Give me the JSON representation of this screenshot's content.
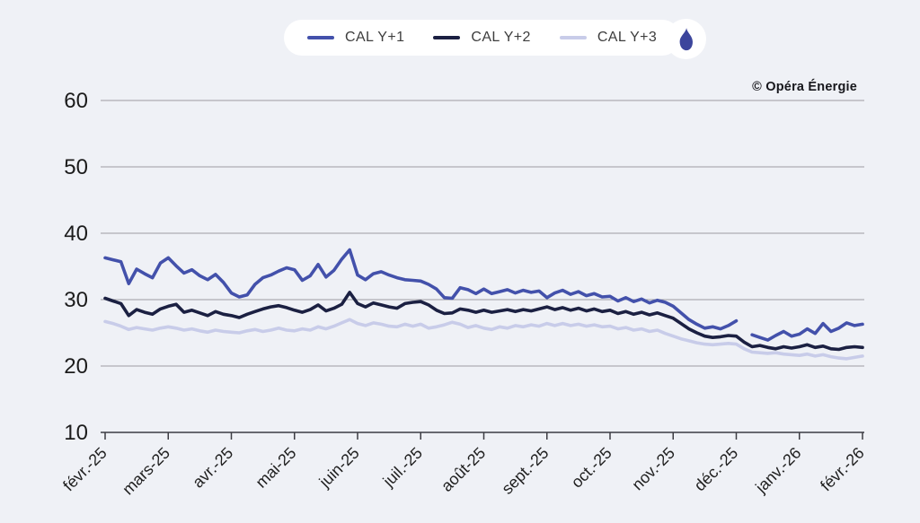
{
  "legend": {
    "items": [
      {
        "label": "CAL Y+1",
        "color": "#4351ab"
      },
      {
        "label": "CAL Y+2",
        "color": "#1b2042"
      },
      {
        "label": "CAL Y+3",
        "color": "#c8cce9"
      }
    ],
    "flame_color": "#3c459c"
  },
  "attribution": "© Opéra Énergie",
  "chart_data": {
    "type": "line",
    "title": "",
    "xlabel": "",
    "ylabel": "",
    "grid": true,
    "legend_position": "top-center",
    "ylim": [
      10,
      62
    ],
    "y_ticks": [
      10,
      20,
      30,
      40,
      50,
      60
    ],
    "x_tick_labels": [
      "févr.-25",
      "mars-25",
      "avr.-25",
      "mai-25",
      "juin-25",
      "juil.-25",
      "août-25",
      "sept.-25",
      "oct.-25",
      "nov.-25",
      "déc.-25",
      "janv.-26",
      "févr.-26"
    ],
    "points_per_month": 8,
    "series": [
      {
        "name": "CAL Y+1",
        "color": "#4351ab",
        "values": [
          36.3,
          36.0,
          35.7,
          32.4,
          34.6,
          33.9,
          33.3,
          35.5,
          36.3,
          35.1,
          34.0,
          34.5,
          33.6,
          33.0,
          33.8,
          32.6,
          31.0,
          30.4,
          30.7,
          32.3,
          33.3,
          33.7,
          34.3,
          34.8,
          34.5,
          32.9,
          33.6,
          35.3,
          33.4,
          34.4,
          36.1,
          37.5,
          33.7,
          33.0,
          33.9,
          34.2,
          33.7,
          33.3,
          33.0,
          32.9,
          32.8,
          32.3,
          31.6,
          30.3,
          30.2,
          31.8,
          31.5,
          30.9,
          31.6,
          30.9,
          31.2,
          31.5,
          31.0,
          31.4,
          31.1,
          31.3,
          30.3,
          31.0,
          31.4,
          30.8,
          31.2,
          30.6,
          30.9,
          30.4,
          30.5,
          29.8,
          30.3,
          29.7,
          30.1,
          29.5,
          29.9,
          29.6,
          29.0,
          28.0,
          27.0,
          26.3,
          25.7,
          25.9,
          25.6,
          26.1,
          26.8,
          null,
          24.7,
          24.3,
          23.9,
          24.6,
          25.2,
          24.5,
          24.8,
          25.6,
          24.9,
          26.4,
          25.2,
          25.7,
          26.5,
          26.1,
          26.3
        ]
      },
      {
        "name": "CAL Y+2",
        "color": "#1b2042",
        "values": [
          30.2,
          29.8,
          29.4,
          27.6,
          28.5,
          28.1,
          27.8,
          28.6,
          29.0,
          29.3,
          28.1,
          28.4,
          28.0,
          27.6,
          28.2,
          27.8,
          27.6,
          27.3,
          27.8,
          28.2,
          28.6,
          28.9,
          29.1,
          28.8,
          28.4,
          28.1,
          28.5,
          29.2,
          28.3,
          28.7,
          29.3,
          31.1,
          29.4,
          28.9,
          29.5,
          29.2,
          28.9,
          28.7,
          29.4,
          29.6,
          29.7,
          29.2,
          28.4,
          27.9,
          28.0,
          28.6,
          28.4,
          28.1,
          28.4,
          28.1,
          28.3,
          28.5,
          28.2,
          28.5,
          28.3,
          28.6,
          28.9,
          28.5,
          28.8,
          28.4,
          28.7,
          28.3,
          28.6,
          28.2,
          28.4,
          27.9,
          28.2,
          27.8,
          28.1,
          27.7,
          28.0,
          27.6,
          27.2,
          26.4,
          25.6,
          25.0,
          24.5,
          24.3,
          24.4,
          24.6,
          24.5,
          23.6,
          22.9,
          23.1,
          22.8,
          22.6,
          22.9,
          22.7,
          22.9,
          23.2,
          22.8,
          23.0,
          22.6,
          22.5,
          22.8,
          22.9,
          22.8
        ]
      },
      {
        "name": "CAL Y+3",
        "color": "#c8cce9",
        "values": [
          26.7,
          26.4,
          26.0,
          25.5,
          25.8,
          25.6,
          25.4,
          25.7,
          25.9,
          25.7,
          25.4,
          25.6,
          25.3,
          25.1,
          25.4,
          25.2,
          25.1,
          25.0,
          25.3,
          25.5,
          25.2,
          25.4,
          25.7,
          25.4,
          25.3,
          25.6,
          25.4,
          25.9,
          25.6,
          26.0,
          26.5,
          27.0,
          26.4,
          26.1,
          26.5,
          26.3,
          26.0,
          25.9,
          26.3,
          26.0,
          26.3,
          25.7,
          25.9,
          26.2,
          26.6,
          26.3,
          25.8,
          26.1,
          25.7,
          25.5,
          25.9,
          25.7,
          26.1,
          25.9,
          26.2,
          26.0,
          26.4,
          26.1,
          26.4,
          26.1,
          26.3,
          26.0,
          26.2,
          25.9,
          26.0,
          25.6,
          25.8,
          25.4,
          25.6,
          25.2,
          25.4,
          24.9,
          24.5,
          24.1,
          23.8,
          23.5,
          23.3,
          23.2,
          23.3,
          23.4,
          23.3,
          22.6,
          22.1,
          22.0,
          21.9,
          22.0,
          21.8,
          21.7,
          21.6,
          21.8,
          21.5,
          21.7,
          21.4,
          21.2,
          21.1,
          21.3,
          21.5
        ]
      }
    ]
  }
}
